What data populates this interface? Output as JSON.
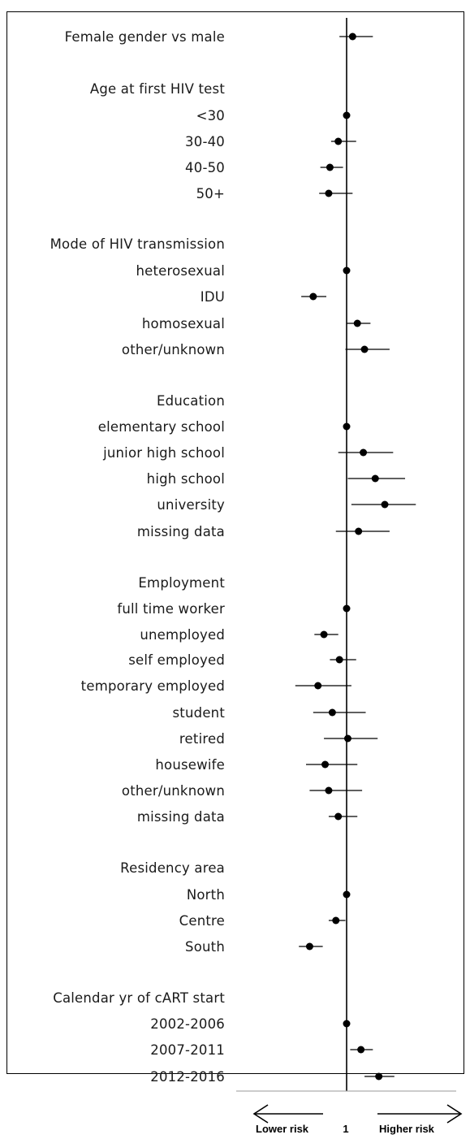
{
  "chart_data": {
    "type": "forest",
    "reference_value": 1,
    "xlim": [
      0.55,
      1.9
    ],
    "rows": [
      {
        "label": "Female gender vs male",
        "estimate": 1.05,
        "lower": 0.94,
        "upper": 1.22
      },
      {
        "label": "Age at first HIV test",
        "header": true
      },
      {
        "label": "<30",
        "estimate": 1.0
      },
      {
        "label": "30-40",
        "estimate": 0.93,
        "lower": 0.87,
        "upper": 1.08
      },
      {
        "label": "40-50",
        "estimate": 0.86,
        "lower": 0.78,
        "upper": 0.97
      },
      {
        "label": "50+",
        "estimate": 0.85,
        "lower": 0.77,
        "upper": 1.05
      },
      {
        "label": "Mode of HIV transmission",
        "header": true
      },
      {
        "label": "heterosexual",
        "estimate": 1.0
      },
      {
        "label": "IDU",
        "estimate": 0.72,
        "lower": 0.62,
        "upper": 0.83
      },
      {
        "label": "homosexual",
        "estimate": 1.09,
        "lower": 1.0,
        "upper": 1.2
      },
      {
        "label": "other/unknown",
        "estimate": 1.15,
        "lower": 0.99,
        "upper": 1.36
      },
      {
        "label": "Education",
        "header": true
      },
      {
        "label": "elementary school",
        "estimate": 1.0
      },
      {
        "label": "junior high school",
        "estimate": 1.14,
        "lower": 0.93,
        "upper": 1.39
      },
      {
        "label": "high school",
        "estimate": 1.24,
        "lower": 1.01,
        "upper": 1.49
      },
      {
        "label": "university",
        "estimate": 1.32,
        "lower": 1.04,
        "upper": 1.58
      },
      {
        "label": "missing data",
        "estimate": 1.1,
        "lower": 0.91,
        "upper": 1.36
      },
      {
        "label": "Employment",
        "header": true
      },
      {
        "label": "full time worker",
        "estimate": 1.0
      },
      {
        "label": "unemployed",
        "estimate": 0.81,
        "lower": 0.73,
        "upper": 0.93
      },
      {
        "label": "self employed",
        "estimate": 0.94,
        "lower": 0.86,
        "upper": 1.08
      },
      {
        "label": "temporary employed",
        "estimate": 0.76,
        "lower": 0.57,
        "upper": 1.04
      },
      {
        "label": "student",
        "estimate": 0.88,
        "lower": 0.72,
        "upper": 1.16
      },
      {
        "label": "retired",
        "estimate": 1.01,
        "lower": 0.81,
        "upper": 1.26
      },
      {
        "label": "housewife",
        "estimate": 0.82,
        "lower": 0.66,
        "upper": 1.09
      },
      {
        "label": "other/unknown",
        "estimate": 0.85,
        "lower": 0.69,
        "upper": 1.13
      },
      {
        "label": "missing data",
        "estimate": 0.93,
        "lower": 0.85,
        "upper": 1.09
      },
      {
        "label": "Residency area",
        "header": true
      },
      {
        "label": "North",
        "estimate": 1.0
      },
      {
        "label": "Centre",
        "estimate": 0.91,
        "lower": 0.85,
        "upper": 0.99
      },
      {
        "label": "South",
        "estimate": 0.69,
        "lower": 0.6,
        "upper": 0.8
      },
      {
        "label": "Calendar yr of cART start",
        "header": true
      },
      {
        "label": "2002-2006",
        "estimate": 1.0
      },
      {
        "label": "2007-2011",
        "estimate": 1.12,
        "lower": 1.03,
        "upper": 1.22
      },
      {
        "label": "2012-2016",
        "estimate": 1.27,
        "lower": 1.15,
        "upper": 1.4
      }
    ],
    "footer": {
      "lower_label": "Lower risk",
      "reference_label": "1",
      "higher_label": "Higher risk"
    }
  },
  "colors": {
    "ink": "#000000",
    "baseline": "#9a9a9a"
  }
}
